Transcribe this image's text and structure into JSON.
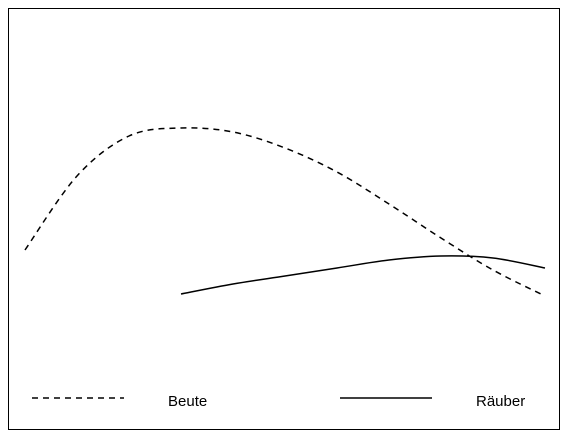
{
  "chart_data": {
    "type": "line",
    "x": [
      0,
      1,
      2,
      3,
      4,
      5,
      6,
      7,
      8,
      9,
      10
    ],
    "xlim": [
      0,
      10
    ],
    "ylim": [
      0,
      100
    ],
    "legend": "bottom",
    "series": [
      {
        "name": "Beute",
        "color": "#000000",
        "style": "dashed",
        "values": [
          42.5,
          61,
          71,
          73,
          72,
          68,
          62,
          54,
          45.5,
          37.5,
          31
        ]
      },
      {
        "name": "Räuber",
        "color": "#000000",
        "style": "solid",
        "values": [
          null,
          null,
          null,
          31.5,
          34,
          36,
          38,
          40,
          41,
          40.5,
          38
        ]
      }
    ]
  }
}
